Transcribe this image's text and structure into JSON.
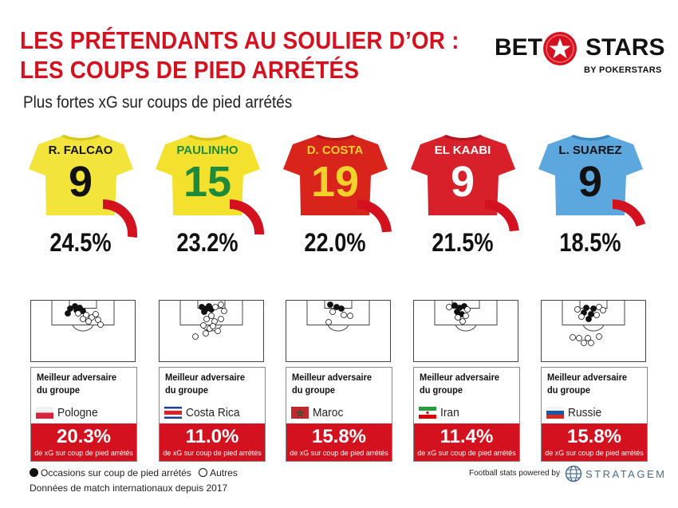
{
  "header": {
    "title_line1": "LES PRÉTENDANTS AU SOULIER D’OR :",
    "title_line2": "LES COUPS DE PIED ARRÉTÉS",
    "subtitle": "Plus fortes xG sur coups de pied arrétés"
  },
  "logo": {
    "left": "BET",
    "right": "STARS",
    "by": "BY POKERSTARS"
  },
  "group_heading_line1": "Meilleur adversaire",
  "group_heading_line2": "du groupe",
  "players": [
    {
      "name": "R. FALCAO",
      "number": "9",
      "xg": "24.5%",
      "xg_value": 24.5,
      "shirt": "#f2e43a",
      "shirt_dark": "#d8c920",
      "text": "#111111",
      "opponent": {
        "country": "Pologne",
        "xg": "20.3%",
        "caption": "de xG sur coup de pied arrétés",
        "flag": "pologne-flag"
      }
    },
    {
      "name": "PAULINHO",
      "number": "15",
      "xg": "23.2%",
      "xg_value": 23.2,
      "shirt": "#f4e12e",
      "shirt_dark": "#d9c317",
      "text": "#1e8a3c",
      "opponent": {
        "country": "Costa Rica",
        "xg": "11.0%",
        "caption": "de xG sur coup de pied arrétés",
        "flag": "costa-rica-flag"
      }
    },
    {
      "name": "D. COSTA",
      "number": "19",
      "xg": "22.0%",
      "xg_value": 22.0,
      "shirt": "#d9241c",
      "shirt_dark": "#b11a14",
      "text": "#f3d22b",
      "opponent": {
        "country": "Maroc",
        "xg": "15.8%",
        "caption": "de xG sur coup de pied arrétés",
        "flag": "maroc-flag"
      }
    },
    {
      "name": "EL KAABI",
      "number": "9",
      "xg": "21.5%",
      "xg_value": 21.5,
      "shirt": "#d8202a",
      "shirt_dark": "#b3151f",
      "text": "#ffffff",
      "opponent": {
        "country": "Iran",
        "xg": "11.4%",
        "caption": "de xG sur coup de pied arrétés",
        "flag": "iran-flag"
      }
    },
    {
      "name": "L. SUAREZ",
      "number": "9",
      "xg": "18.5%",
      "xg_value": 18.5,
      "shirt": "#5ba7de",
      "shirt_dark": "#3d8ac3",
      "text": "#111111",
      "opponent": {
        "country": "Russie",
        "xg": "15.8%",
        "caption": "de xG sur coup de pied arrétés",
        "flag": "russie-flag"
      }
    }
  ],
  "legend": {
    "filled": "Occasions sur coup de pied arrétés",
    "empty": "Autres"
  },
  "note": "Données de match internationaux depuis 2017",
  "credit": {
    "powered": "Football stats powered by",
    "brand": "STRATAGEM"
  },
  "colors": {
    "accent": "#d4111f"
  }
}
